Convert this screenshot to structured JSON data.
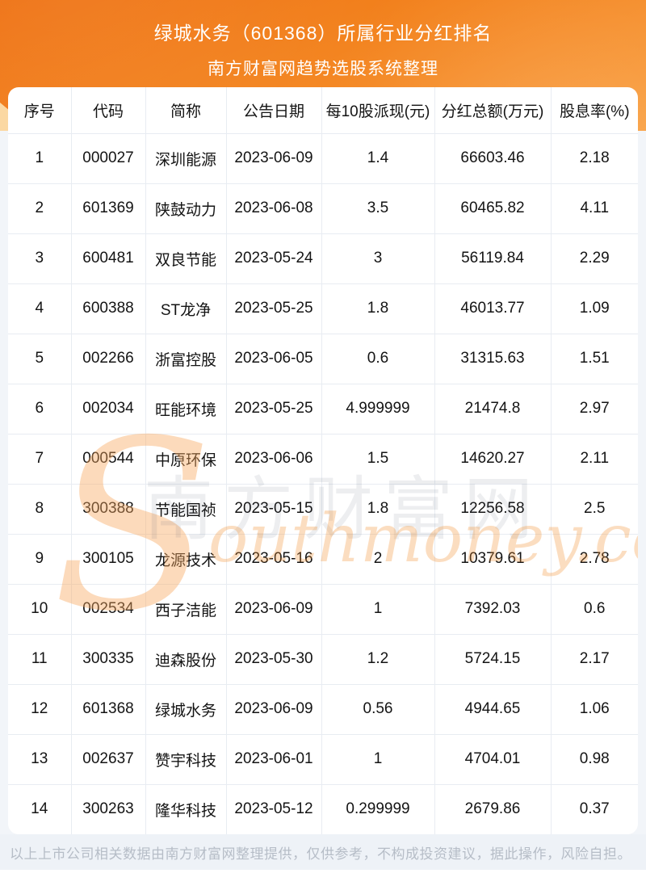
{
  "header": {
    "title": "绿城水务（601368）所属行业分红排名",
    "subtitle": "南方财富网趋势选股系统整理"
  },
  "table": {
    "columns": [
      "序号",
      "代码",
      "简称",
      "公告日期",
      "每10股派现(元)",
      "分红总额(万元)",
      "股息率(%)"
    ],
    "col_keys": [
      "index",
      "code",
      "name",
      "announce-date",
      "cash-per-10-shares",
      "total-dividend",
      "dividend-yield"
    ],
    "rows": [
      [
        "1",
        "000027",
        "深圳能源",
        "2023-06-09",
        "1.4",
        "66603.46",
        "2.18"
      ],
      [
        "2",
        "601369",
        "陕鼓动力",
        "2023-06-08",
        "3.5",
        "60465.82",
        "4.11"
      ],
      [
        "3",
        "600481",
        "双良节能",
        "2023-05-24",
        "3",
        "56119.84",
        "2.29"
      ],
      [
        "4",
        "600388",
        "ST龙净",
        "2023-05-25",
        "1.8",
        "46013.77",
        "1.09"
      ],
      [
        "5",
        "002266",
        "浙富控股",
        "2023-06-05",
        "0.6",
        "31315.63",
        "1.51"
      ],
      [
        "6",
        "002034",
        "旺能环境",
        "2023-05-25",
        "4.999999",
        "21474.8",
        "2.97"
      ],
      [
        "7",
        "000544",
        "中原环保",
        "2023-06-06",
        "1.5",
        "14620.27",
        "2.11"
      ],
      [
        "8",
        "300388",
        "节能国祯",
        "2023-05-15",
        "1.8",
        "12256.58",
        "2.5"
      ],
      [
        "9",
        "300105",
        "龙源技术",
        "2023-05-16",
        "2",
        "10379.61",
        "2.78"
      ],
      [
        "10",
        "002534",
        "西子洁能",
        "2023-06-09",
        "1",
        "7392.03",
        "0.6"
      ],
      [
        "11",
        "300335",
        "迪森股份",
        "2023-05-30",
        "1.2",
        "5724.15",
        "2.17"
      ],
      [
        "12",
        "601368",
        "绿城水务",
        "2023-06-09",
        "0.56",
        "4944.65",
        "1.06"
      ],
      [
        "13",
        "002637",
        "赞宇科技",
        "2023-06-01",
        "1",
        "4704.01",
        "0.98"
      ],
      [
        "14",
        "300263",
        "隆华科技",
        "2023-05-12",
        "0.299999",
        "2679.86",
        "0.37"
      ]
    ]
  },
  "watermark": {
    "initial": "S",
    "cn_text": "南方财富网",
    "en_text": "outhmoney.com"
  },
  "footer": {
    "disclaimer": "以上上市公司相关数据由南方财富网整理提供，仅供参考，不构成投资建议，据此操作，风险自担。"
  },
  "colors": {
    "hero_gradient_start": "#ee6f0f",
    "hero_gradient_end": "#f99e3e",
    "hero_peach_wedge": "#fbd8a2",
    "card_bg": "#ffffff",
    "grid_line": "#e8ecf2",
    "cell_text": "#141414",
    "footer_bg": "#eef2f7",
    "footer_text": "#b6bdc7",
    "watermark_orange": "#f28e2e"
  }
}
